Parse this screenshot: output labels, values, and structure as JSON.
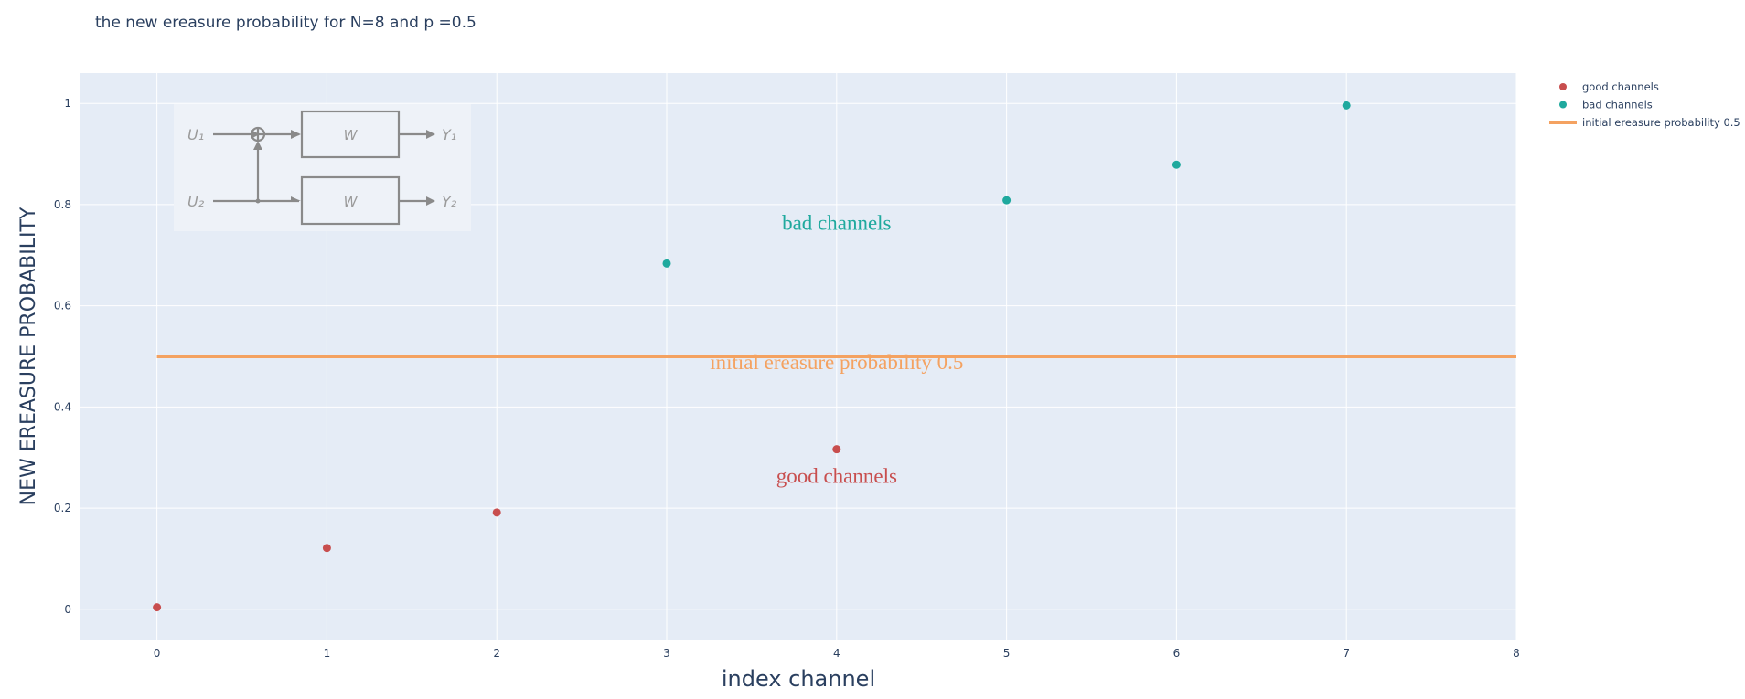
{
  "chart_data": {
    "type": "scatter",
    "title": "the new ereasure probability for  N=8 and p =0.5",
    "xlabel": "index channel",
    "ylabel": "NEW EREASURE PROBABILITY",
    "xlim": [
      -0.45,
      8
    ],
    "ylim": [
      -0.06,
      1.06
    ],
    "x_ticks": [
      0,
      1,
      2,
      3,
      4,
      5,
      6,
      7,
      8
    ],
    "y_ticks": [
      0,
      0.2,
      0.4,
      0.6,
      0.8,
      1
    ],
    "grid": true,
    "legend_position": "top-right",
    "series": [
      {
        "name": "good channels",
        "mode": "markers",
        "color": "#c84e4e",
        "x": [
          0,
          1,
          2,
          4
        ],
        "y": [
          0.0039,
          0.1211,
          0.1914,
          0.3164
        ]
      },
      {
        "name": "bad channels",
        "mode": "markers",
        "color": "#1fa99e",
        "x": [
          3,
          5,
          6,
          7
        ],
        "y": [
          0.6836,
          0.8086,
          0.8789,
          0.9961
        ]
      },
      {
        "name": "initial ereasure probability 0.5",
        "mode": "lines",
        "color": "#f4a261",
        "x": [
          0,
          8
        ],
        "y": [
          0.5,
          0.5
        ]
      }
    ],
    "annotations": [
      {
        "text": "bad channels",
        "x": 4,
        "y": 0.75,
        "color": "#1fa99e"
      },
      {
        "text": "initial ereasure probability 0.5",
        "x": 4,
        "y": 0.475,
        "color": "#f4a261"
      },
      {
        "text": "good channels",
        "x": 4,
        "y": 0.25,
        "color": "#c84e4e"
      }
    ],
    "inset_diagram": {
      "inputs": [
        "U₁",
        "U₂"
      ],
      "blocks": [
        "W",
        "W"
      ],
      "outputs": [
        "Y₁",
        "Y₂"
      ]
    }
  }
}
